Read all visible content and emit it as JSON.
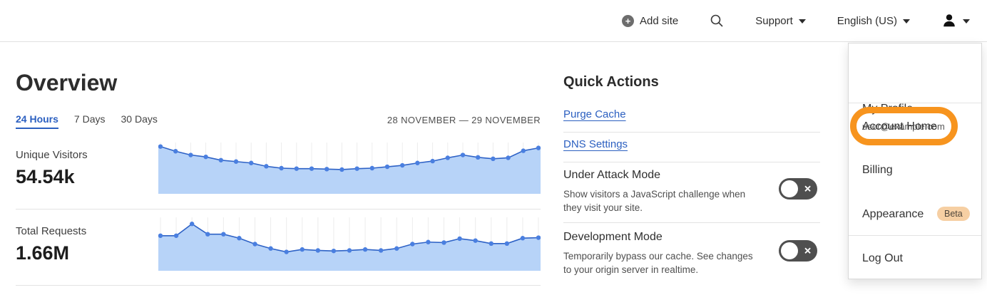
{
  "header": {
    "add_site": "Add site",
    "support": "Support",
    "language": "English (US)"
  },
  "icons": {
    "add_site_glyph": "+",
    "add_site": "plus-circle",
    "search": "magnifying-glass",
    "support_caret": "chevron-down",
    "language_caret": "chevron-down",
    "user": "person-silhouette",
    "user_caret": "chevron-down",
    "toggle_off_glyph": "✕"
  },
  "overview": {
    "title": "Overview",
    "tabs": [
      {
        "label": "24 Hours",
        "active": true
      },
      {
        "label": "7 Days",
        "active": false
      },
      {
        "label": "30 Days",
        "active": false
      }
    ],
    "date_range": "28 NOVEMBER — 29 NOVEMBER",
    "metrics": [
      {
        "label": "Unique Visitors",
        "value": "54.54k"
      },
      {
        "label": "Total Requests",
        "value": "1.66M"
      }
    ]
  },
  "quick_actions": {
    "title": "Quick Actions",
    "links": [
      "Purge Cache",
      "DNS Settings"
    ],
    "toggles": [
      {
        "label": "Under Attack Mode",
        "description": "Show visitors a JavaScript challenge when they visit your site.",
        "enabled": false
      },
      {
        "label": "Development Mode",
        "description": "Temporarily bypass our cache. See changes to your origin server in realtime.",
        "enabled": false
      }
    ]
  },
  "account_menu": {
    "profile_label": "My Profile",
    "profile_email": "user@example.com",
    "items": [
      "Account Home",
      "Billing",
      "Appearance",
      "Log Out"
    ],
    "beta_badge": "Beta",
    "highlighted_item": "Account Home",
    "highlight_color": "#F7941E"
  },
  "chart_data": [
    {
      "type": "area",
      "title": "Unique Visitors",
      "summary_value": "54.54k",
      "x_range": "28 NOVEMBER — 29 NOVEMBER",
      "axes_labeled": false,
      "grid": "vertical",
      "relative_values": [
        0.96,
        0.86,
        0.78,
        0.74,
        0.67,
        0.64,
        0.61,
        0.54,
        0.5,
        0.49,
        0.49,
        0.48,
        0.47,
        0.49,
        0.5,
        0.53,
        0.56,
        0.61,
        0.65,
        0.72,
        0.78,
        0.73,
        0.7,
        0.72,
        0.87,
        0.93
      ],
      "colors": {
        "fill": "#B7D3F8",
        "line": "#2E62C6",
        "point": "#4A7FE0",
        "grid": "#ECECEC"
      }
    },
    {
      "type": "area",
      "title": "Total Requests",
      "summary_value": "1.66M",
      "x_range": "28 NOVEMBER — 29 NOVEMBER",
      "axes_labeled": false,
      "grid": "vertical",
      "relative_values": [
        0.67,
        0.67,
        0.91,
        0.7,
        0.7,
        0.62,
        0.5,
        0.41,
        0.34,
        0.39,
        0.37,
        0.36,
        0.37,
        0.39,
        0.37,
        0.41,
        0.5,
        0.54,
        0.53,
        0.61,
        0.57,
        0.51,
        0.51,
        0.62,
        0.63
      ],
      "colors": {
        "fill": "#B7D3F8",
        "line": "#2E62C6",
        "point": "#4A7FE0",
        "grid": "#ECECEC"
      }
    }
  ]
}
